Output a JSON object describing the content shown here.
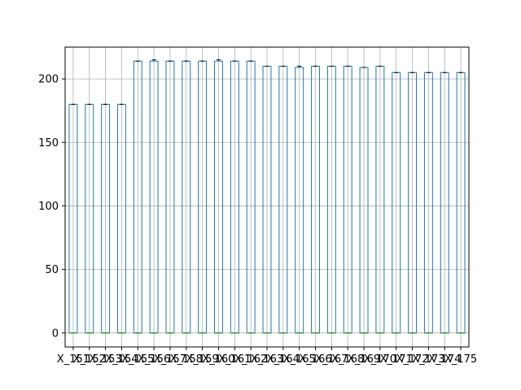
{
  "chart_data": {
    "type": "box",
    "title": "",
    "xlabel": "",
    "ylabel": "",
    "ylim": [
      -11,
      225
    ],
    "yticks": [
      0,
      50,
      100,
      150,
      200
    ],
    "grid": true,
    "legend": "none",
    "colors": {
      "box": "#1f77b4",
      "median": "#2ca02c",
      "grid": "#b0b0b0",
      "axis": "#000000"
    },
    "categories": [
      "X_151",
      "X_152",
      "X_153",
      "X_154",
      "X_155",
      "X_156",
      "X_157",
      "X_158",
      "X_159",
      "X_160",
      "X_161",
      "X_162",
      "X_163",
      "X_164",
      "X_165",
      "X_166",
      "X_167",
      "X_168",
      "X_169",
      "X_170",
      "X_171",
      "X_172",
      "X_173",
      "X_174",
      "X_175"
    ],
    "series": [
      {
        "min": 0,
        "q1": 0,
        "median": 0,
        "q3": 180,
        "max": 180
      },
      {
        "min": 0,
        "q1": 0,
        "median": 0,
        "q3": 180,
        "max": 180
      },
      {
        "min": 0,
        "q1": 0,
        "median": 0,
        "q3": 180,
        "max": 180
      },
      {
        "min": 0,
        "q1": 0,
        "median": 0,
        "q3": 180,
        "max": 180
      },
      {
        "min": 0,
        "q1": 0,
        "median": 0,
        "q3": 214,
        "max": 214
      },
      {
        "min": 0,
        "q1": 0,
        "median": 0,
        "q3": 214,
        "max": 215
      },
      {
        "min": 0,
        "q1": 0,
        "median": 0,
        "q3": 214,
        "max": 214
      },
      {
        "min": 0,
        "q1": 0,
        "median": 0,
        "q3": 214,
        "max": 214
      },
      {
        "min": 0,
        "q1": 0,
        "median": 0,
        "q3": 214,
        "max": 214
      },
      {
        "min": 0,
        "q1": 0,
        "median": 0,
        "q3": 214,
        "max": 215
      },
      {
        "min": 0,
        "q1": 0,
        "median": 0,
        "q3": 214,
        "max": 214
      },
      {
        "min": 0,
        "q1": 0,
        "median": 0,
        "q3": 214,
        "max": 214
      },
      {
        "min": 0,
        "q1": 0,
        "median": 0,
        "q3": 210,
        "max": 210
      },
      {
        "min": 0,
        "q1": 0,
        "median": 0,
        "q3": 210,
        "max": 210
      },
      {
        "min": 0,
        "q1": 0,
        "median": 0,
        "q3": 209,
        "max": 210
      },
      {
        "min": 0,
        "q1": 0,
        "median": 0,
        "q3": 210,
        "max": 210
      },
      {
        "min": 0,
        "q1": 0,
        "median": 0,
        "q3": 210,
        "max": 210
      },
      {
        "min": 0,
        "q1": 0,
        "median": 0,
        "q3": 210,
        "max": 210
      },
      {
        "min": 0,
        "q1": 0,
        "median": 0,
        "q3": 209,
        "max": 209
      },
      {
        "min": 0,
        "q1": 0,
        "median": 0,
        "q3": 210,
        "max": 210
      },
      {
        "min": 0,
        "q1": 0,
        "median": 0,
        "q3": 205,
        "max": 205
      },
      {
        "min": 0,
        "q1": 0,
        "median": 0,
        "q3": 205,
        "max": 205
      },
      {
        "min": 0,
        "q1": 0,
        "median": 0,
        "q3": 205,
        "max": 205
      },
      {
        "min": 0,
        "q1": 0,
        "median": 0,
        "q3": 205,
        "max": 205
      },
      {
        "min": 0,
        "q1": 0,
        "median": 0,
        "q3": 205,
        "max": 205
      }
    ]
  }
}
